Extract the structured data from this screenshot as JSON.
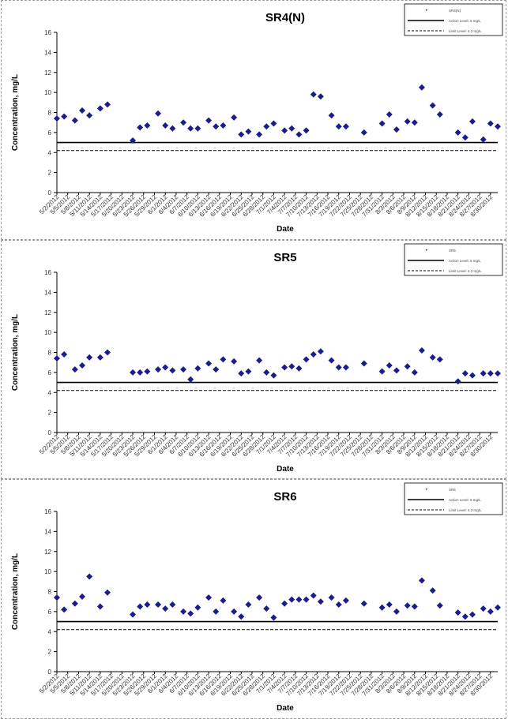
{
  "chart_data": [
    {
      "type": "scatter",
      "title": "SR4(N)",
      "xlabel": "Date",
      "ylabel": "Concentration, mg/L",
      "ylim": [
        0,
        16
      ],
      "yticks": [
        0,
        2,
        4,
        6,
        8,
        10,
        12,
        14,
        16
      ],
      "x_tick_labels": [
        "5/2/2012",
        "5/5/2012",
        "5/8/2012",
        "5/11/2012",
        "5/14/2012",
        "5/17/2012",
        "5/20/2012",
        "5/23/2012",
        "5/26/2012",
        "5/29/2012",
        "6/1/2012",
        "6/4/2012",
        "6/7/2012",
        "6/10/2012",
        "6/13/2012",
        "6/16/2012",
        "6/19/2012",
        "6/22/2012",
        "6/25/2012",
        "6/28/2012",
        "7/1/2012",
        "7/4/2012",
        "7/7/2012",
        "7/10/2012",
        "7/13/2012",
        "7/16/2012",
        "7/19/2012",
        "7/22/2012",
        "7/25/2012",
        "7/28/2012",
        "7/31/2012",
        "8/3/2012",
        "8/6/2012",
        "8/9/2012",
        "8/12/2012",
        "8/15/2012",
        "8/18/2012",
        "8/21/2012",
        "8/24/2012",
        "8/27/2012",
        "8/30/2012"
      ],
      "x_range": [
        "5/2/2012",
        "9/1/2012"
      ],
      "action_level": 5,
      "limit_level": 4.2,
      "legend": [
        "SR4(N)",
        "Action Level: 5 mg/L",
        "Limit Level: 4.2 mg/L"
      ],
      "legend_position": "top-right",
      "series": [
        {
          "name": "SR4(N)",
          "color": "#1c1c8c",
          "points": [
            [
              "5/2/2012",
              7.4
            ],
            [
              "5/4/2012",
              7.6
            ],
            [
              "5/7/2012",
              7.2
            ],
            [
              "5/9/2012",
              8.2
            ],
            [
              "5/11/2012",
              7.7
            ],
            [
              "5/14/2012",
              8.4
            ],
            [
              "5/16/2012",
              8.8
            ],
            [
              "5/23/2012",
              5.2
            ],
            [
              "5/25/2012",
              6.5
            ],
            [
              "5/27/2012",
              6.7
            ],
            [
              "5/30/2012",
              7.9
            ],
            [
              "6/1/2012",
              6.7
            ],
            [
              "6/3/2012",
              6.4
            ],
            [
              "6/6/2012",
              7.0
            ],
            [
              "6/8/2012",
              6.4
            ],
            [
              "6/10/2012",
              6.4
            ],
            [
              "6/13/2012",
              7.2
            ],
            [
              "6/15/2012",
              6.6
            ],
            [
              "6/17/2012",
              6.7
            ],
            [
              "6/20/2012",
              7.5
            ],
            [
              "6/22/2012",
              5.8
            ],
            [
              "6/24/2012",
              6.1
            ],
            [
              "6/27/2012",
              5.8
            ],
            [
              "6/29/2012",
              6.6
            ],
            [
              "7/1/2012",
              6.9
            ],
            [
              "7/4/2012",
              6.2
            ],
            [
              "7/6/2012",
              6.4
            ],
            [
              "7/8/2012",
              5.8
            ],
            [
              "7/10/2012",
              6.2
            ],
            [
              "7/12/2012",
              9.8
            ],
            [
              "7/14/2012",
              9.6
            ],
            [
              "7/17/2012",
              7.7
            ],
            [
              "7/19/2012",
              6.6
            ],
            [
              "7/21/2012",
              6.6
            ],
            [
              "7/26/2012",
              6.0
            ],
            [
              "7/31/2012",
              6.9
            ],
            [
              "8/2/2012",
              7.8
            ],
            [
              "8/4/2012",
              6.3
            ],
            [
              "8/7/2012",
              7.1
            ],
            [
              "8/9/2012",
              7.0
            ],
            [
              "8/11/2012",
              10.5
            ],
            [
              "8/14/2012",
              8.7
            ],
            [
              "8/16/2012",
              7.8
            ],
            [
              "8/21/2012",
              6.0
            ],
            [
              "8/23/2012",
              5.5
            ],
            [
              "8/25/2012",
              7.1
            ],
            [
              "8/28/2012",
              5.3
            ],
            [
              "8/30/2012",
              6.9
            ],
            [
              "9/1/2012",
              6.6
            ]
          ]
        }
      ]
    },
    {
      "type": "scatter",
      "title": "SR5",
      "xlabel": "Date",
      "ylabel": "Concentration, mg/L",
      "ylim": [
        0,
        16
      ],
      "yticks": [
        0,
        2,
        4,
        6,
        8,
        10,
        12,
        14,
        16
      ],
      "x_tick_labels": [
        "5/2/2012",
        "5/5/2012",
        "5/8/2012",
        "5/11/2012",
        "5/14/2012",
        "5/17/2012",
        "5/20/2012",
        "5/23/2012",
        "5/26/2012",
        "5/29/2012",
        "6/1/2012",
        "6/4/2012",
        "6/7/2012",
        "6/10/2012",
        "6/13/2012",
        "6/16/2012",
        "6/19/2012",
        "6/22/2012",
        "6/25/2012",
        "6/28/2012",
        "7/1/2012",
        "7/4/2012",
        "7/7/2012",
        "7/10/2012",
        "7/13/2012",
        "7/16/2012",
        "7/19/2012",
        "7/22/2012",
        "7/25/2012",
        "7/28/2012",
        "7/31/2012",
        "8/3/2012",
        "8/6/2012",
        "8/9/2012",
        "8/12/2012",
        "8/15/2012",
        "8/18/2012",
        "8/21/2012",
        "8/24/2012",
        "8/27/2012",
        "8/30/2012"
      ],
      "x_range": [
        "5/2/2012",
        "9/1/2012"
      ],
      "action_level": 5,
      "limit_level": 4.2,
      "legend": [
        "SR5",
        "Action Level: 5 mg/L",
        "Limit Level: 4.2 mg/L"
      ],
      "legend_position": "top-right",
      "series": [
        {
          "name": "SR5",
          "color": "#1c1c8c",
          "points": [
            [
              "5/2/2012",
              7.4
            ],
            [
              "5/4/2012",
              7.8
            ],
            [
              "5/7/2012",
              6.3
            ],
            [
              "5/9/2012",
              6.7
            ],
            [
              "5/11/2012",
              7.5
            ],
            [
              "5/14/2012",
              7.5
            ],
            [
              "5/16/2012",
              8.0
            ],
            [
              "5/23/2012",
              6.0
            ],
            [
              "5/25/2012",
              6.0
            ],
            [
              "5/27/2012",
              6.1
            ],
            [
              "5/30/2012",
              6.3
            ],
            [
              "6/1/2012",
              6.5
            ],
            [
              "6/3/2012",
              6.2
            ],
            [
              "6/6/2012",
              6.3
            ],
            [
              "6/8/2012",
              5.3
            ],
            [
              "6/10/2012",
              6.4
            ],
            [
              "6/13/2012",
              6.9
            ],
            [
              "6/15/2012",
              6.3
            ],
            [
              "6/17/2012",
              7.3
            ],
            [
              "6/20/2012",
              7.1
            ],
            [
              "6/22/2012",
              5.9
            ],
            [
              "6/24/2012",
              6.1
            ],
            [
              "6/27/2012",
              7.2
            ],
            [
              "6/29/2012",
              6.0
            ],
            [
              "7/1/2012",
              5.7
            ],
            [
              "7/4/2012",
              6.5
            ],
            [
              "7/6/2012",
              6.6
            ],
            [
              "7/8/2012",
              6.4
            ],
            [
              "7/10/2012",
              7.3
            ],
            [
              "7/12/2012",
              7.8
            ],
            [
              "7/14/2012",
              8.1
            ],
            [
              "7/17/2012",
              7.2
            ],
            [
              "7/19/2012",
              6.5
            ],
            [
              "7/21/2012",
              6.5
            ],
            [
              "7/26/2012",
              6.9
            ],
            [
              "7/31/2012",
              6.1
            ],
            [
              "8/2/2012",
              6.7
            ],
            [
              "8/4/2012",
              6.2
            ],
            [
              "8/7/2012",
              6.6
            ],
            [
              "8/9/2012",
              6.0
            ],
            [
              "8/11/2012",
              8.2
            ],
            [
              "8/14/2012",
              7.5
            ],
            [
              "8/16/2012",
              7.3
            ],
            [
              "8/21/2012",
              5.1
            ],
            [
              "8/23/2012",
              5.9
            ],
            [
              "8/25/2012",
              5.7
            ],
            [
              "8/28/2012",
              5.9
            ],
            [
              "8/30/2012",
              5.9
            ],
            [
              "9/1/2012",
              5.9
            ]
          ]
        }
      ]
    },
    {
      "type": "scatter",
      "title": "SR6",
      "xlabel": "Date",
      "ylabel": "Concentration, mg/L",
      "ylim": [
        0,
        16
      ],
      "yticks": [
        0,
        2,
        4,
        6,
        8,
        10,
        12,
        14,
        16
      ],
      "x_tick_labels": [
        "5/2/2012",
        "5/5/2012",
        "5/8/2012",
        "5/11/2012",
        "5/14/2012",
        "5/17/2012",
        "5/20/2012",
        "5/23/2012",
        "5/26/2012",
        "5/29/2012",
        "6/1/2012",
        "6/4/2012",
        "6/7/2012",
        "6/10/2012",
        "6/13/2012",
        "6/16/2012",
        "6/19/2012",
        "6/22/2012",
        "6/25/2012",
        "6/28/2012",
        "7/1/2012",
        "7/4/2012",
        "7/7/2012",
        "7/10/2012",
        "7/13/2012",
        "7/16/2012",
        "7/19/2012",
        "7/22/2012",
        "7/25/2012",
        "7/28/2012",
        "7/31/2012",
        "8/3/2012",
        "8/6/2012",
        "8/9/2012",
        "8/12/2012",
        "8/15/2012",
        "8/18/2012",
        "8/21/2012",
        "8/24/2012",
        "8/27/2012",
        "8/30/2012"
      ],
      "x_range": [
        "5/2/2012",
        "9/1/2012"
      ],
      "action_level": 5,
      "limit_level": 4.2,
      "legend": [
        "SR6",
        "Action Level: 5 mg/L",
        "Limit Level: 4.2 mg/L"
      ],
      "legend_position": "top-right",
      "series": [
        {
          "name": "SR6",
          "color": "#1c1c8c",
          "points": [
            [
              "5/2/2012",
              7.4
            ],
            [
              "5/4/2012",
              6.2
            ],
            [
              "5/7/2012",
              6.8
            ],
            [
              "5/9/2012",
              7.5
            ],
            [
              "5/11/2012",
              9.5
            ],
            [
              "5/14/2012",
              6.5
            ],
            [
              "5/16/2012",
              7.9
            ],
            [
              "5/23/2012",
              5.7
            ],
            [
              "5/25/2012",
              6.5
            ],
            [
              "5/27/2012",
              6.7
            ],
            [
              "5/30/2012",
              6.7
            ],
            [
              "6/1/2012",
              6.3
            ],
            [
              "6/3/2012",
              6.7
            ],
            [
              "6/6/2012",
              6.0
            ],
            [
              "6/8/2012",
              5.8
            ],
            [
              "6/10/2012",
              6.4
            ],
            [
              "6/13/2012",
              7.4
            ],
            [
              "6/15/2012",
              6.0
            ],
            [
              "6/17/2012",
              7.1
            ],
            [
              "6/20/2012",
              6.0
            ],
            [
              "6/22/2012",
              5.5
            ],
            [
              "6/24/2012",
              6.7
            ],
            [
              "6/27/2012",
              7.4
            ],
            [
              "6/29/2012",
              6.3
            ],
            [
              "7/1/2012",
              5.4
            ],
            [
              "7/4/2012",
              6.8
            ],
            [
              "7/6/2012",
              7.2
            ],
            [
              "7/8/2012",
              7.2
            ],
            [
              "7/10/2012",
              7.2
            ],
            [
              "7/12/2012",
              7.6
            ],
            [
              "7/14/2012",
              7.0
            ],
            [
              "7/17/2012",
              7.4
            ],
            [
              "7/19/2012",
              6.7
            ],
            [
              "7/21/2012",
              7.1
            ],
            [
              "7/26/2012",
              6.8
            ],
            [
              "7/31/2012",
              6.4
            ],
            [
              "8/2/2012",
              6.7
            ],
            [
              "8/4/2012",
              6.0
            ],
            [
              "8/7/2012",
              6.6
            ],
            [
              "8/9/2012",
              6.5
            ],
            [
              "8/11/2012",
              9.1
            ],
            [
              "8/14/2012",
              8.1
            ],
            [
              "8/16/2012",
              6.6
            ],
            [
              "8/21/2012",
              5.9
            ],
            [
              "8/23/2012",
              5.5
            ],
            [
              "8/25/2012",
              5.7
            ],
            [
              "8/28/2012",
              6.3
            ],
            [
              "8/30/2012",
              6.0
            ],
            [
              "9/1/2012",
              6.4
            ]
          ]
        }
      ]
    }
  ]
}
